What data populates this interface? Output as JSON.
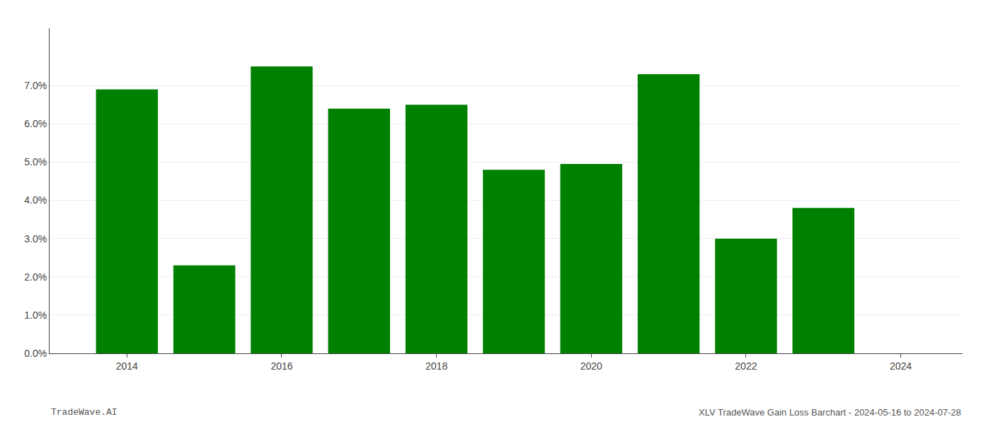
{
  "chart_data": {
    "type": "bar",
    "x": [
      2014,
      2015,
      2016,
      2017,
      2018,
      2019,
      2020,
      2021,
      2022,
      2023
    ],
    "values": [
      0.069,
      0.023,
      0.075,
      0.064,
      0.065,
      0.048,
      0.0495,
      0.073,
      0.03,
      0.038
    ],
    "color": "#008000",
    "xlim": [
      2013.0,
      2024.8
    ],
    "xticks": [
      2014,
      2016,
      2018,
      2020,
      2022,
      2024
    ],
    "ylim": [
      0,
      0.085
    ],
    "yticks": [
      {
        "value": 0.0,
        "label": "0.0%"
      },
      {
        "value": 0.01,
        "label": "1.0%"
      },
      {
        "value": 0.02,
        "label": "2.0%"
      },
      {
        "value": 0.03,
        "label": "3.0%"
      },
      {
        "value": 0.04,
        "label": "4.0%"
      },
      {
        "value": 0.05,
        "label": "5.0%"
      },
      {
        "value": 0.06,
        "label": "6.0%"
      },
      {
        "value": 0.07,
        "label": "7.0%"
      }
    ],
    "grid": true,
    "annotations": [
      "TradeWave.AI",
      "XLV TradeWave Gain Loss Barchart - 2024-05-16 to 2024-07-28"
    ]
  }
}
